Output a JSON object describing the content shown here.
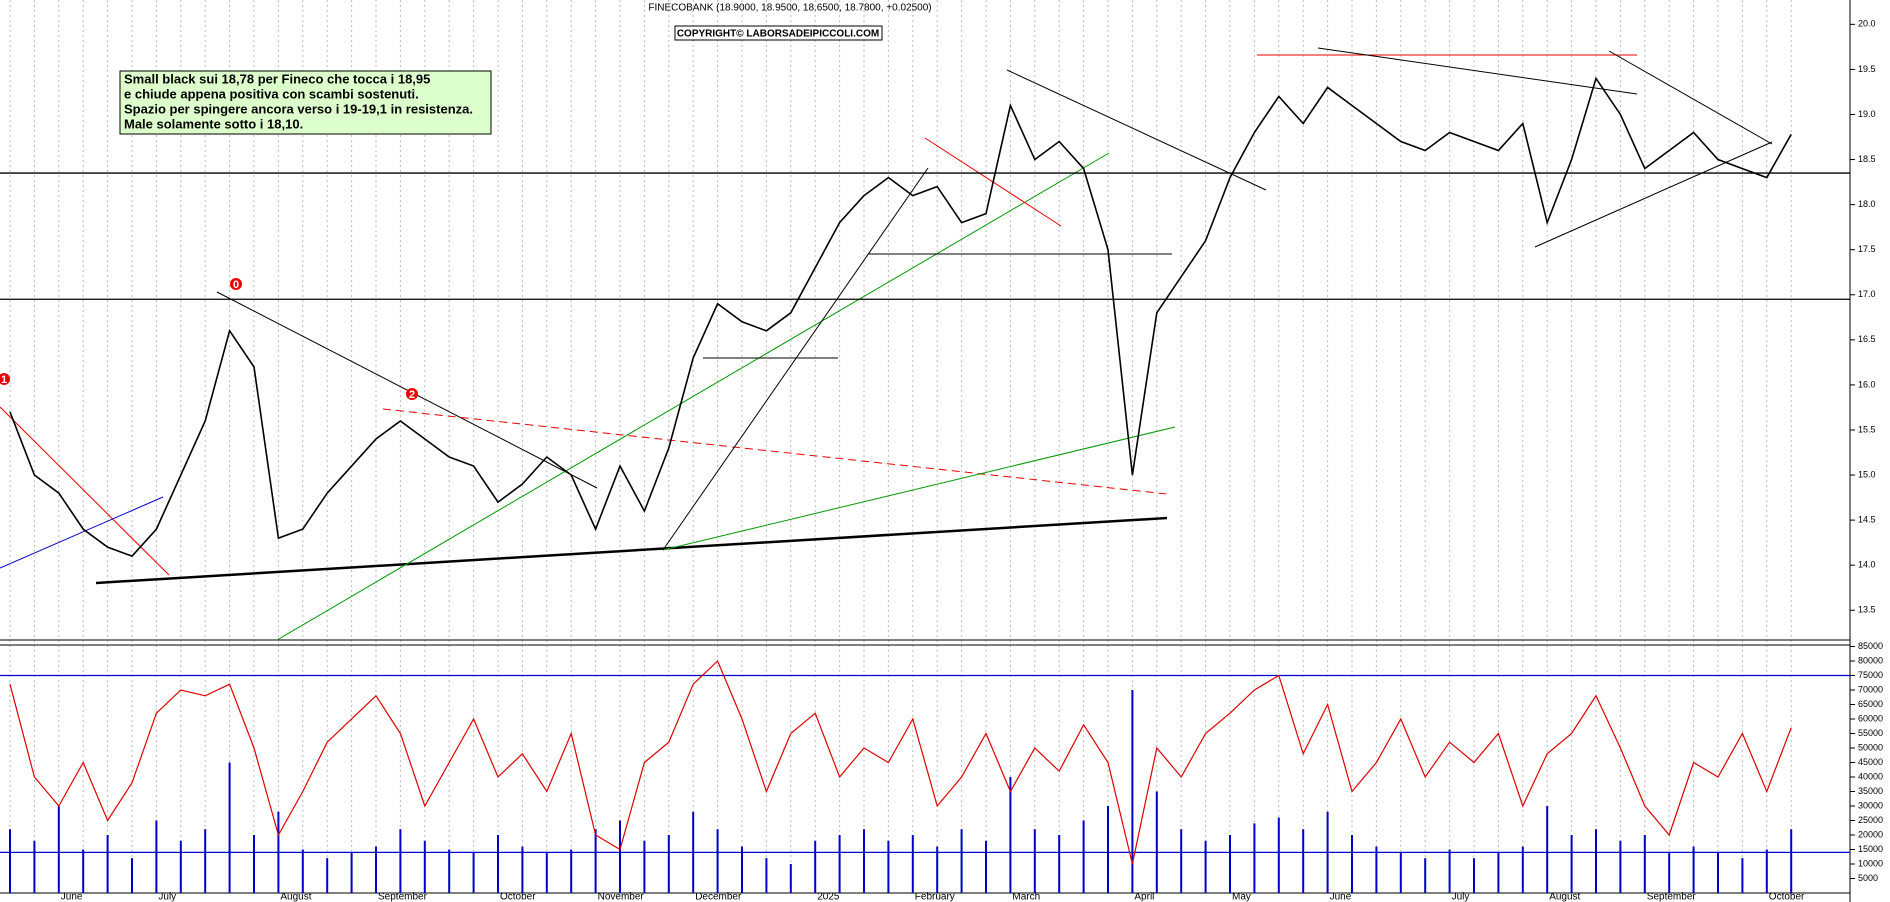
{
  "chart_data": [
    {
      "type": "line",
      "title": "FINECOBANK (18.9000, 18.9500, 18.6500, 18.7800, +0.02500)",
      "copyright": "COPYRIGHT© LABORSADEIPICCOLI.COM",
      "annotation": [
        "Small black sui 18,78 per Fineco che tocca i 18,95",
        "e chiude appena positiva con scambi sostenuti.",
        "Spazio per spingere ancora verso i 19-19,1 in resistenza.",
        "Male solamente sotto i 18,10."
      ],
      "wave_labels": [
        "1",
        "0",
        "2"
      ],
      "categories": [
        null,
        null,
        "June",
        null,
        null,
        null,
        "July",
        null,
        null,
        null,
        null,
        "August",
        null,
        null,
        null,
        "September",
        null,
        null,
        null,
        null,
        "October",
        null,
        null,
        null,
        "November",
        null,
        null,
        null,
        "December",
        null,
        null,
        null,
        null,
        "2025",
        null,
        null,
        null,
        "February",
        null,
        null,
        null,
        "March",
        null,
        null,
        null,
        null,
        "April",
        null,
        null,
        null,
        "May",
        null,
        null,
        null,
        "June",
        null,
        null,
        null,
        null,
        "July",
        null,
        null,
        null,
        "August",
        null,
        null,
        null,
        "September",
        null,
        null,
        null,
        null,
        "October",
        null
      ],
      "values": [
        15.7,
        15.0,
        14.8,
        14.4,
        14.2,
        14.1,
        14.4,
        15.0,
        15.6,
        16.6,
        16.2,
        14.3,
        14.4,
        14.8,
        15.1,
        15.4,
        15.6,
        15.4,
        15.2,
        15.1,
        14.7,
        14.9,
        15.2,
        15.0,
        14.4,
        15.1,
        14.6,
        15.3,
        16.3,
        16.9,
        16.7,
        16.6,
        16.8,
        17.3,
        17.8,
        18.1,
        18.3,
        18.1,
        18.2,
        17.8,
        17.9,
        19.1,
        18.5,
        18.7,
        18.4,
        17.5,
        15.0,
        16.8,
        17.2,
        17.6,
        18.3,
        18.8,
        19.2,
        18.9,
        19.3,
        19.1,
        18.9,
        18.7,
        18.6,
        18.8,
        18.7,
        18.6,
        18.9,
        17.8,
        18.5,
        19.4,
        19.0,
        18.4,
        18.6,
        18.8,
        18.5,
        18.4,
        18.3,
        18.78
      ],
      "color": "#000000",
      "hlines": [
        16.95,
        18.35
      ],
      "ylim": [
        13.17,
        20.27
      ],
      "yticks": [
        13.5,
        {
          "value": 14,
          "label": "14.0"
        },
        14.5,
        {
          "value": 15,
          "label": "15.0"
        },
        15.5,
        {
          "value": 16,
          "label": "16.0"
        },
        16.5,
        {
          "value": 17,
          "label": "17.0"
        },
        17.5,
        {
          "value": 18,
          "label": "18.0"
        },
        18.5,
        {
          "value": 19,
          "label": "19.0"
        },
        19.5,
        {
          "value": 20,
          "label": "20.0"
        }
      ]
    },
    {
      "type": "bar",
      "series": [
        {
          "color": "#0000cc",
          "values": [
            22000,
            18000,
            30000,
            15000,
            20000,
            12000,
            25000,
            18000,
            22000,
            45000,
            20000,
            28000,
            15000,
            12000,
            14000,
            16000,
            22000,
            18000,
            15000,
            14000,
            20000,
            16000,
            14000,
            15000,
            22000,
            25000,
            18000,
            20000,
            28000,
            22000,
            16000,
            12000,
            10000,
            18000,
            20000,
            22000,
            18000,
            20000,
            16000,
            22000,
            18000,
            40000,
            22000,
            20000,
            25000,
            30000,
            70000,
            35000,
            22000,
            18000,
            20000,
            24000,
            26000,
            22000,
            28000,
            20000,
            16000,
            14000,
            12000,
            15000,
            12000,
            14000,
            16000,
            30000,
            20000,
            22000,
            18000,
            20000,
            14000,
            16000,
            14000,
            12000,
            15000,
            22000
          ]
        },
        {
          "type": "line",
          "color": "#dd0000",
          "values": [
            72000,
            40000,
            30000,
            45000,
            25000,
            38000,
            62000,
            70000,
            68000,
            72000,
            50000,
            20000,
            35000,
            52000,
            60000,
            68000,
            55000,
            30000,
            45000,
            60000,
            40000,
            48000,
            35000,
            55000,
            20000,
            15000,
            45000,
            52000,
            72000,
            80000,
            60000,
            35000,
            55000,
            62000,
            40000,
            50000,
            45000,
            60000,
            30000,
            40000,
            55000,
            35000,
            50000,
            42000,
            58000,
            45000,
            10000,
            50000,
            40000,
            55000,
            62000,
            70000,
            75000,
            48000,
            65000,
            35000,
            45000,
            60000,
            40000,
            52000,
            45000,
            55000,
            30000,
            48000,
            55000,
            68000,
            50000,
            30000,
            20000,
            45000,
            40000,
            55000,
            35000,
            57000
          ]
        }
      ],
      "hlines": [
        75000,
        14000
      ],
      "ylim": [
        0,
        85170
      ],
      "yticks": [
        5000,
        10000,
        15000,
        20000,
        25000,
        30000,
        35000,
        40000,
        45000,
        50000,
        55000,
        60000,
        65000,
        70000,
        75000,
        80000,
        85000
      ]
    }
  ]
}
